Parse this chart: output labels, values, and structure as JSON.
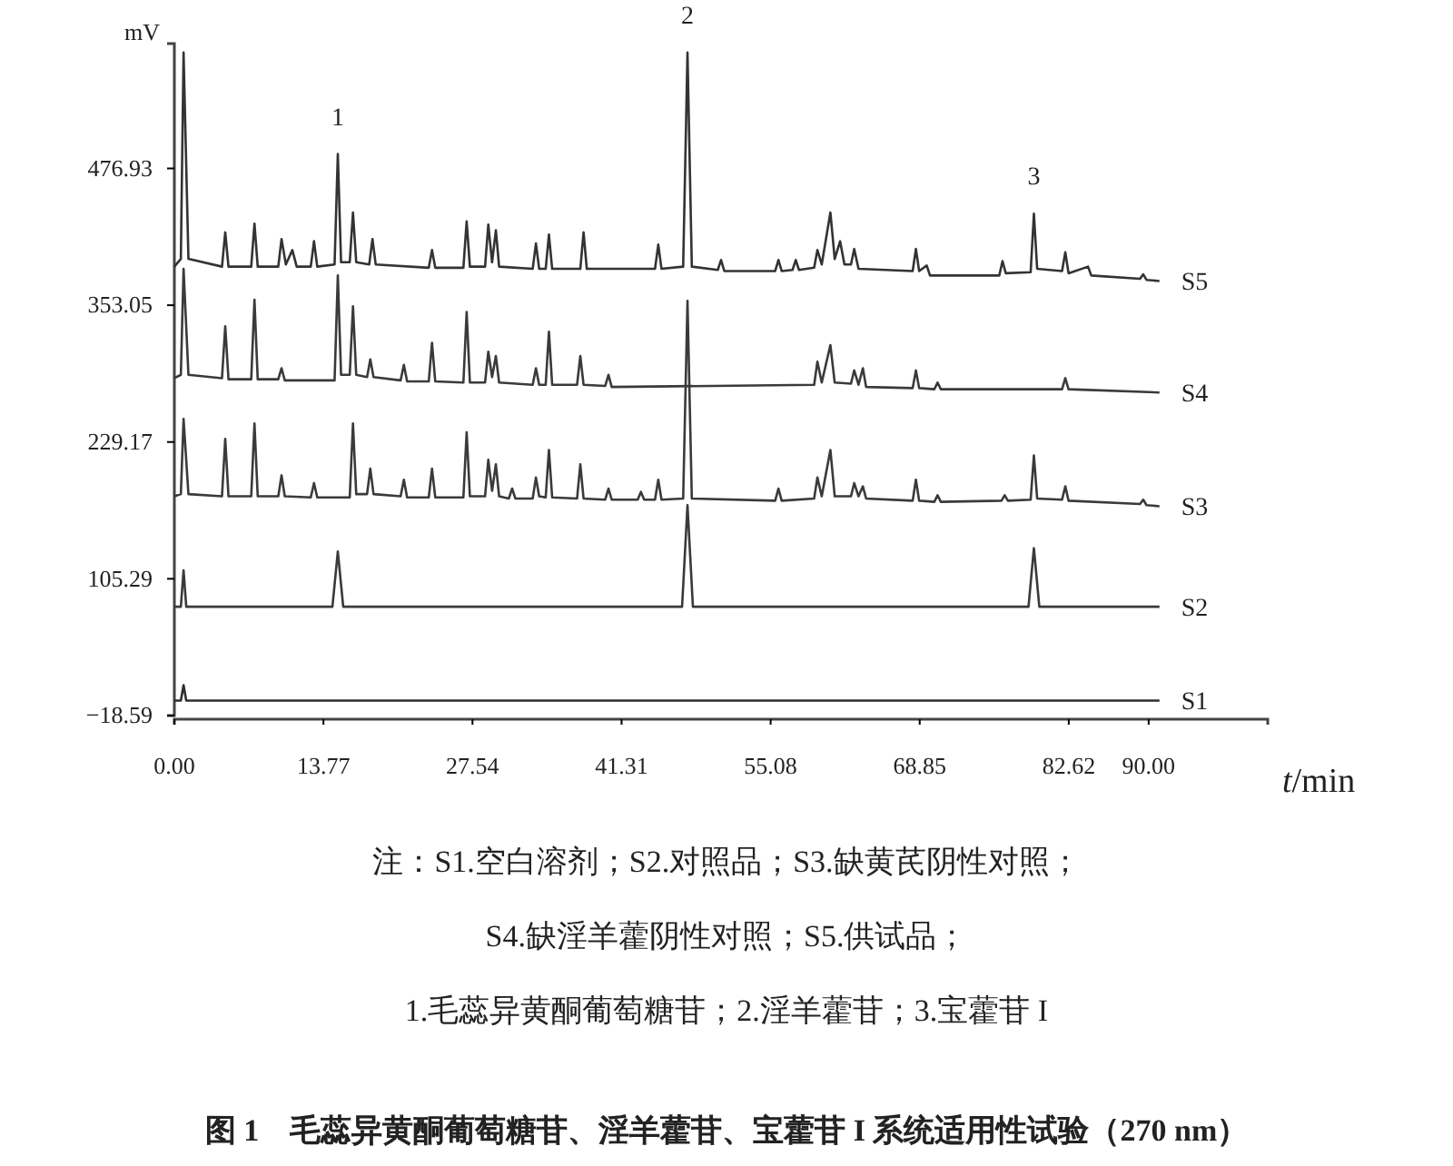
{
  "chart_data": {
    "type": "line",
    "title": "图 1　毛蕊异黄酮葡萄糖苷、淫羊藿苷、宝藿苷 I 系统适用性试验（270 nm）",
    "xlabel": "t/min",
    "ylabel": "mV",
    "xlim": [
      0,
      101
    ],
    "xticks": [
      {
        "value": 0,
        "label": "0.00"
      },
      13.77,
      27.54,
      41.31,
      55.08,
      68.85,
      82.62,
      {
        "value": 90,
        "label": "90.00"
      }
    ],
    "ylim": [
      -18.59,
      590
    ],
    "yticks": [
      -18.59,
      105.29,
      229.17,
      353.05,
      476.93
    ],
    "grid": false,
    "legend": false,
    "marker": "none",
    "line_style": "solid",
    "annotations": [
      {
        "text": "1",
        "x": 15.1,
        "y": 490
      },
      {
        "text": "2",
        "x": 47.4,
        "y": 582
      },
      {
        "text": "3",
        "x": 79.4,
        "y": 436
      },
      "注：S1.空白溶剂；S2.对照品；S3.缺黄芪阴性对照；",
      "S4.缺淫羊藿阴性对照；S5.供试品；",
      "1.毛蕊异黄酮葡萄糖苷；2.淫羊藿苷；3.宝藿苷 I"
    ],
    "series": [
      {
        "name": "S1",
        "color": "#2e2e2e",
        "x": [
          0,
          0.6,
          0.85,
          1.1,
          91
        ],
        "values": [
          -5,
          -5,
          9,
          -5,
          -5
        ]
      },
      {
        "name": "S2",
        "color": "#3a3a3a",
        "x": [
          0,
          0.6,
          0.85,
          1.1,
          14.6,
          15.1,
          15.6,
          46.9,
          47.4,
          47.9,
          78.9,
          79.4,
          79.9,
          91
        ],
        "values": [
          80,
          80,
          113,
          80,
          80,
          130,
          80,
          80,
          172,
          80,
          80,
          133,
          80,
          80
        ]
      },
      {
        "name": "S3",
        "color": "#3a3a3a",
        "x": [
          0,
          0.6,
          0.85,
          1.3,
          4.4,
          4.7,
          5.0,
          7.1,
          7.4,
          7.7,
          9.6,
          9.9,
          10.2,
          12.6,
          12.9,
          13.2,
          16.2,
          16.5,
          16.8,
          17.8,
          18.1,
          18.4,
          20.9,
          21.2,
          21.5,
          23.5,
          23.8,
          24.1,
          26.7,
          27.0,
          27.3,
          28.7,
          29.0,
          29.35,
          29.7,
          30.0,
          30.9,
          31.2,
          31.5,
          33.1,
          33.4,
          33.7,
          34.3,
          34.6,
          34.9,
          37.2,
          37.5,
          37.8,
          39.8,
          40.1,
          40.4,
          42.8,
          43.1,
          43.4,
          44.4,
          44.7,
          45.0,
          47.0,
          47.4,
          47.8,
          55.5,
          55.8,
          56.1,
          59.1,
          59.4,
          59.8,
          60.6,
          61.0,
          62.5,
          62.8,
          63.2,
          63.6,
          63.9,
          68.2,
          68.5,
          68.8,
          70.2,
          70.5,
          70.8,
          76.4,
          76.7,
          77.0,
          79.1,
          79.4,
          79.7,
          82.0,
          82.3,
          82.6,
          89.2,
          89.5,
          89.8,
          91
        ],
        "values": [
          180,
          182,
          250,
          182,
          180,
          232,
          180,
          180,
          246,
          180,
          180,
          199,
          180,
          179,
          192,
          179,
          179,
          246,
          182,
          182,
          205,
          182,
          180,
          195,
          179,
          179,
          205,
          179,
          179,
          238,
          180,
          180,
          213,
          185,
          209,
          180,
          178,
          187,
          178,
          178,
          197,
          180,
          179,
          222,
          179,
          178,
          209,
          178,
          177,
          187,
          177,
          177,
          184,
          177,
          177,
          195,
          177,
          178,
          357,
          178,
          176,
          187,
          176,
          178,
          197,
          180,
          222,
          180,
          180,
          192,
          180,
          189,
          178,
          176,
          195,
          176,
          175,
          181,
          175,
          176,
          181,
          176,
          177,
          217,
          178,
          177,
          189,
          176,
          173,
          177,
          172,
          171
        ]
      },
      {
        "name": "S4",
        "color": "#3a3a3a",
        "x": [
          0,
          0.6,
          0.85,
          1.3,
          4.4,
          4.7,
          5.0,
          7.1,
          7.4,
          7.7,
          9.6,
          9.9,
          10.2,
          14.8,
          15.1,
          15.4,
          16.2,
          16.5,
          16.8,
          17.8,
          18.1,
          18.4,
          20.9,
          21.2,
          21.5,
          23.5,
          23.8,
          24.1,
          26.7,
          27.0,
          27.3,
          28.7,
          29.0,
          29.35,
          29.7,
          30.0,
          33.1,
          33.4,
          33.7,
          34.3,
          34.6,
          34.9,
          37.2,
          37.5,
          37.8,
          39.8,
          40.1,
          40.4,
          59.1,
          59.4,
          59.8,
          60.6,
          61.0,
          62.5,
          62.8,
          63.2,
          63.6,
          63.9,
          68.2,
          68.5,
          68.8,
          70.2,
          70.5,
          70.8,
          82.0,
          82.3,
          82.6,
          91
        ],
        "values": [
          287,
          290,
          386,
          290,
          287,
          334,
          286,
          286,
          358,
          286,
          286,
          296,
          285,
          285,
          380,
          290,
          290,
          352,
          290,
          288,
          304,
          288,
          285,
          299,
          284,
          284,
          319,
          284,
          283,
          347,
          283,
          283,
          311,
          288,
          307,
          283,
          281,
          296,
          281,
          281,
          329,
          281,
          281,
          307,
          281,
          280,
          290,
          279,
          281,
          302,
          283,
          317,
          283,
          282,
          294,
          281,
          296,
          279,
          278,
          294,
          278,
          277,
          283,
          277,
          277,
          287,
          277,
          274
        ]
      },
      {
        "name": "S5",
        "color": "#333333",
        "x": [
          0,
          0.6,
          0.85,
          1.3,
          4.4,
          4.7,
          5.0,
          7.1,
          7.4,
          7.7,
          9.6,
          9.9,
          10.3,
          10.9,
          11.3,
          12.6,
          12.9,
          13.2,
          14.8,
          15.1,
          15.4,
          16.2,
          16.5,
          16.8,
          18.0,
          18.3,
          18.6,
          23.5,
          23.8,
          24.1,
          26.7,
          27.0,
          27.3,
          28.7,
          29.0,
          29.35,
          29.7,
          30.0,
          33.1,
          33.4,
          33.7,
          34.3,
          34.6,
          34.9,
          37.5,
          37.8,
          38.1,
          44.4,
          44.7,
          45.0,
          47.0,
          47.4,
          47.8,
          50.2,
          50.5,
          50.8,
          55.5,
          55.8,
          56.1,
          57.1,
          57.4,
          57.7,
          59.1,
          59.4,
          59.8,
          60.6,
          61.0,
          61.5,
          61.9,
          62.5,
          62.8,
          63.2,
          68.2,
          68.5,
          68.8,
          69.5,
          69.8,
          76.2,
          76.5,
          76.8,
          79.1,
          79.4,
          79.7,
          82.0,
          82.3,
          82.6,
          84.4,
          84.7,
          89.2,
          89.5,
          89.8,
          91
        ],
        "values": [
          388,
          395,
          582,
          395,
          388,
          419,
          388,
          388,
          427,
          388,
          388,
          413,
          390,
          403,
          388,
          388,
          411,
          388,
          390,
          490,
          392,
          392,
          437,
          392,
          390,
          413,
          390,
          387,
          403,
          387,
          387,
          429,
          388,
          388,
          426,
          392,
          421,
          388,
          386,
          409,
          386,
          386,
          417,
          386,
          386,
          419,
          386,
          386,
          408,
          386,
          388,
          582,
          388,
          385,
          394,
          384,
          384,
          394,
          384,
          385,
          394,
          385,
          387,
          403,
          390,
          437,
          395,
          411,
          390,
          390,
          404,
          386,
          384,
          404,
          384,
          389,
          380,
          380,
          393,
          382,
          383,
          436,
          386,
          384,
          401,
          382,
          388,
          380,
          377,
          381,
          376,
          375
        ]
      }
    ]
  }
}
